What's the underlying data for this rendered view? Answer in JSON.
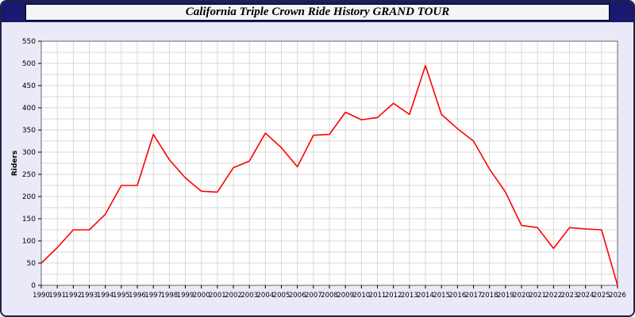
{
  "header": {
    "title": "California Triple Crown Ride History GRAND TOUR",
    "bar_color": "#191970",
    "box_color": "#f4f4fb"
  },
  "chart_data": {
    "type": "line",
    "title": "California Triple Crown Ride History GRAND TOUR",
    "xlabel": "",
    "ylabel": "Riders",
    "ylim": [
      0,
      550
    ],
    "y_label_step": 50,
    "y_grid_step": 25,
    "grid": true,
    "legend": "none",
    "line_color": "#ff0000",
    "grid_color": "#d9d9d9",
    "plot_bg": "#ffffff",
    "x": [
      1990,
      1991,
      1992,
      1993,
      1994,
      1995,
      1996,
      1997,
      1998,
      1999,
      2000,
      2001,
      2002,
      2003,
      2004,
      2005,
      2006,
      2007,
      2008,
      2009,
      2010,
      2011,
      2012,
      2013,
      2014,
      2015,
      2016,
      2017,
      2018,
      2019,
      2020,
      2021,
      2022,
      2023,
      2024,
      2025,
      2026
    ],
    "values": [
      50,
      85,
      125,
      125,
      160,
      225,
      225,
      340,
      283,
      242,
      212,
      210,
      265,
      280,
      343,
      310,
      267,
      338,
      340,
      390,
      373,
      378,
      410,
      385,
      495,
      385,
      353,
      325,
      262,
      210,
      135,
      130,
      83,
      130,
      127,
      125,
      0
    ]
  }
}
